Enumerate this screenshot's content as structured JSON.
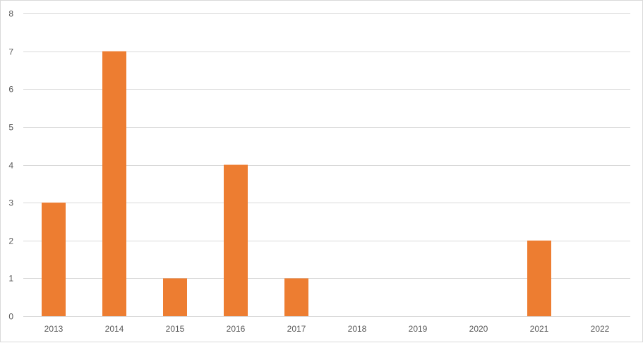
{
  "chart_data": {
    "type": "bar",
    "title": "",
    "xlabel": "",
    "ylabel": "",
    "categories": [
      "2013",
      "2014",
      "2015",
      "2016",
      "2017",
      "2018",
      "2019",
      "2020",
      "2021",
      "2022"
    ],
    "values": [
      3,
      7,
      1,
      4,
      1,
      0,
      0,
      0,
      2,
      0
    ],
    "ylim": [
      0,
      8
    ],
    "yticks": [
      0,
      1,
      2,
      3,
      4,
      5,
      6,
      7,
      8
    ],
    "grid": true,
    "legend": "none",
    "bar_color": "#ED7D31"
  }
}
